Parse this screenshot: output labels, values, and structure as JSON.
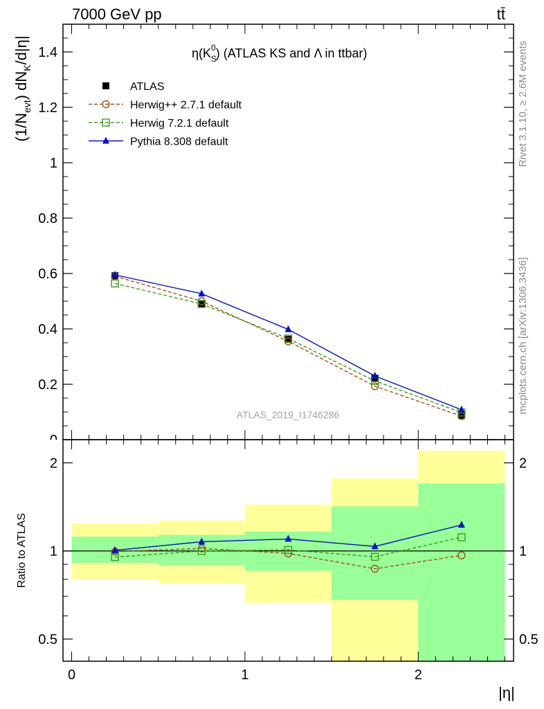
{
  "header": {
    "left": "7000 GeV pp",
    "right": "tt̄"
  },
  "side_text": {
    "rivet": "Rivet 3.1.10, ≥ 2.6M events",
    "mcplots": "mcplots.cern.ch [arXiv:1306.3436]"
  },
  "chart_data": [
    {
      "type": "line",
      "panel": "main",
      "title": "η(K_S^0) (ATLAS KS and Λ in ttbar)",
      "title_parts": {
        "pre": "η(K",
        "sub": "S",
        "sup": "0",
        "post": ") (ATLAS KS and Λ in ttbar)"
      },
      "ylabel": "(1/N_evt) dN_K/d|η|",
      "ylabel_parts": {
        "a": "(1/N",
        "sub1": "evt",
        "b": ") dN",
        "sub2": "K",
        "c": "/d|η|"
      },
      "watermark": "ATLAS_2019_I1746286",
      "xlim": [
        -0.05,
        2.55
      ],
      "ylim": [
        0,
        1.5
      ],
      "yticks": [
        {
          "v": 0.2,
          "label": "0.2"
        },
        {
          "v": 0.4,
          "label": "0.4"
        },
        {
          "v": 0.6,
          "label": "0.6"
        },
        {
          "v": 0.8,
          "label": "0.8"
        },
        {
          "v": 1.0,
          "label": "1"
        },
        {
          "v": 1.2,
          "label": "1.2"
        },
        {
          "v": 1.4,
          "label": "1.4"
        }
      ],
      "y_zero_label": "0",
      "x": [
        0.25,
        0.75,
        1.25,
        1.75,
        2.25
      ],
      "bin_edges": [
        0,
        0.5,
        1.0,
        1.5,
        2.0,
        2.5
      ],
      "legend_position": "top-left",
      "series": [
        {
          "name": "ATLAS",
          "values": [
            0.592,
            0.49,
            0.362,
            0.222,
            0.088
          ],
          "color": "#000000",
          "marker": "square-filled",
          "dash": "none"
        },
        {
          "name": "Herwig++ 2.7.1 default",
          "values": [
            0.59,
            0.5,
            0.355,
            0.193,
            0.085
          ],
          "color": "#a0500f",
          "marker": "circle-open",
          "dash": "dashed"
        },
        {
          "name": "Herwig 7.2.1 default",
          "values": [
            0.564,
            0.49,
            0.365,
            0.212,
            0.098
          ],
          "color": "#3c9a14",
          "marker": "square-open",
          "dash": "dashed"
        },
        {
          "name": "Pythia 8.308 default",
          "values": [
            0.595,
            0.527,
            0.398,
            0.23,
            0.108
          ],
          "color": "#0010c8",
          "marker": "triangle-filled",
          "dash": "none"
        }
      ]
    },
    {
      "type": "line",
      "panel": "ratio",
      "ylabel": "Ratio to ATLAS",
      "xlabel": "|η|",
      "ylim": [
        0.42,
        2.4
      ],
      "log_y": true,
      "yticks": [
        {
          "v": 0.5,
          "label": "0.5"
        },
        {
          "v": 1,
          "label": "1"
        },
        {
          "v": 2,
          "label": "2"
        }
      ],
      "xticks": [
        {
          "v": 0,
          "label": "0"
        },
        {
          "v": 1,
          "label": "1"
        },
        {
          "v": 2,
          "label": "2"
        }
      ],
      "x": [
        0.25,
        0.75,
        1.25,
        1.75,
        2.25
      ],
      "bands": {
        "green_stat": [
          [
            0.91,
            1.12
          ],
          [
            0.895,
            1.135
          ],
          [
            0.855,
            1.165
          ],
          [
            0.68,
            1.42
          ],
          [
            0.42,
            1.7
          ]
        ],
        "yellow_total": [
          [
            0.8,
            1.24
          ],
          [
            0.775,
            1.27
          ],
          [
            0.665,
            1.44
          ],
          [
            0.42,
            1.77
          ],
          [
            0.42,
            2.2
          ]
        ],
        "green_color": "#99ff99",
        "yellow_color": "#ffff99"
      },
      "series": [
        {
          "name": "Herwig++ 2.7.1 default",
          "values": [
            0.995,
            1.02,
            0.981,
            0.869,
            0.966
          ]
        },
        {
          "name": "Herwig 7.2.1 default",
          "values": [
            0.953,
            1.0,
            1.008,
            0.955,
            1.114
          ]
        },
        {
          "name": "Pythia 8.308 default",
          "values": [
            1.005,
            1.075,
            1.099,
            1.036,
            1.227
          ]
        }
      ]
    }
  ]
}
